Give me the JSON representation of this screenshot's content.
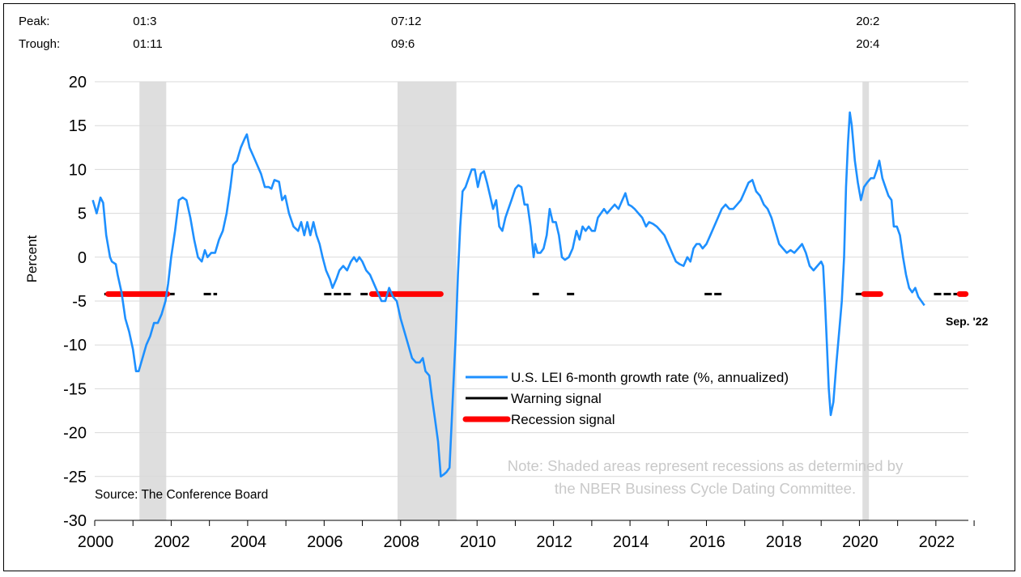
{
  "chart_data": {
    "type": "line",
    "ylabel": "Percent",
    "ylim": [
      -30,
      20
    ],
    "yticks": [
      20,
      15,
      10,
      5,
      0,
      -5,
      -10,
      -15,
      -20,
      -25,
      -30
    ],
    "xlim": [
      2000,
      2022.85
    ],
    "xticks": [
      2000,
      2002,
      2004,
      2006,
      2008,
      2010,
      2012,
      2014,
      2016,
      2018,
      2020,
      2022
    ],
    "grid": true,
    "peak_label": "Peak:",
    "trough_label": "Trough:",
    "recessions": [
      {
        "peak": "01:3",
        "trough": "01:11",
        "start": 2001.17,
        "end": 2001.87
      },
      {
        "peak": "07:12",
        "trough": "09:6",
        "start": 2007.92,
        "end": 2009.46
      },
      {
        "peak": "20:2",
        "trough": "20:4",
        "start": 2020.08,
        "end": 2020.25
      }
    ],
    "series": [
      {
        "name": "U.S. LEI 6-month growth rate (%, annualized)",
        "color": "#1e90ff",
        "points": [
          [
            1999.95,
            6.5
          ],
          [
            2000.05,
            5.0
          ],
          [
            2000.15,
            6.8
          ],
          [
            2000.22,
            6.2
          ],
          [
            2000.3,
            2.5
          ],
          [
            2000.4,
            0
          ],
          [
            2000.45,
            -0.5
          ],
          [
            2000.55,
            -0.8
          ],
          [
            2000.6,
            -2.0
          ],
          [
            2000.7,
            -4.0
          ],
          [
            2000.8,
            -7.0
          ],
          [
            2000.9,
            -8.5
          ],
          [
            2001.0,
            -10.5
          ],
          [
            2001.08,
            -13.0
          ],
          [
            2001.15,
            -13.0
          ],
          [
            2001.25,
            -11.5
          ],
          [
            2001.35,
            -10.0
          ],
          [
            2001.45,
            -9.0
          ],
          [
            2001.55,
            -7.5
          ],
          [
            2001.65,
            -7.5
          ],
          [
            2001.75,
            -6.5
          ],
          [
            2001.85,
            -5.0
          ],
          [
            2001.92,
            -3.0
          ],
          [
            2002.0,
            0
          ],
          [
            2002.1,
            3.0
          ],
          [
            2002.2,
            6.5
          ],
          [
            2002.3,
            6.8
          ],
          [
            2002.4,
            6.5
          ],
          [
            2002.5,
            4.5
          ],
          [
            2002.6,
            2.0
          ],
          [
            2002.7,
            0
          ],
          [
            2002.8,
            -0.5
          ],
          [
            2002.88,
            0.8
          ],
          [
            2002.95,
            0
          ],
          [
            2003.05,
            0.5
          ],
          [
            2003.15,
            0.5
          ],
          [
            2003.25,
            2.0
          ],
          [
            2003.35,
            3.0
          ],
          [
            2003.45,
            5.0
          ],
          [
            2003.55,
            8.0
          ],
          [
            2003.62,
            10.5
          ],
          [
            2003.72,
            11.0
          ],
          [
            2003.82,
            12.5
          ],
          [
            2003.92,
            13.5
          ],
          [
            2003.98,
            14.0
          ],
          [
            2004.05,
            12.5
          ],
          [
            2004.15,
            11.5
          ],
          [
            2004.25,
            10.5
          ],
          [
            2004.35,
            9.5
          ],
          [
            2004.45,
            8.0
          ],
          [
            2004.55,
            8.0
          ],
          [
            2004.62,
            7.8
          ],
          [
            2004.7,
            8.8
          ],
          [
            2004.82,
            8.6
          ],
          [
            2004.9,
            6.5
          ],
          [
            2004.98,
            7.0
          ],
          [
            2005.08,
            5.0
          ],
          [
            2005.2,
            3.5
          ],
          [
            2005.32,
            3.0
          ],
          [
            2005.4,
            4.0
          ],
          [
            2005.48,
            2.5
          ],
          [
            2005.56,
            4.0
          ],
          [
            2005.64,
            2.5
          ],
          [
            2005.72,
            4.0
          ],
          [
            2005.8,
            2.5
          ],
          [
            2005.88,
            1.5
          ],
          [
            2005.96,
            0
          ],
          [
            2006.05,
            -1.5
          ],
          [
            2006.15,
            -2.5
          ],
          [
            2006.22,
            -3.5
          ],
          [
            2006.32,
            -2.5
          ],
          [
            2006.4,
            -1.5
          ],
          [
            2006.5,
            -1.0
          ],
          [
            2006.6,
            -1.5
          ],
          [
            2006.7,
            -0.5
          ],
          [
            2006.78,
            0.0
          ],
          [
            2006.85,
            -0.5
          ],
          [
            2006.92,
            0.0
          ],
          [
            2007.0,
            -0.5
          ],
          [
            2007.1,
            -1.5
          ],
          [
            2007.2,
            -2.0
          ],
          [
            2007.3,
            -3.0
          ],
          [
            2007.4,
            -4.0
          ],
          [
            2007.5,
            -5.0
          ],
          [
            2007.6,
            -5.0
          ],
          [
            2007.7,
            -3.5
          ],
          [
            2007.8,
            -4.5
          ],
          [
            2007.9,
            -5.0
          ],
          [
            2008.0,
            -7.0
          ],
          [
            2008.1,
            -8.5
          ],
          [
            2008.2,
            -10.0
          ],
          [
            2008.3,
            -11.5
          ],
          [
            2008.4,
            -12.0
          ],
          [
            2008.5,
            -12.0
          ],
          [
            2008.58,
            -11.5
          ],
          [
            2008.65,
            -13.0
          ],
          [
            2008.75,
            -13.5
          ],
          [
            2008.82,
            -16.0
          ],
          [
            2008.9,
            -18.5
          ],
          [
            2008.98,
            -21.0
          ],
          [
            2009.05,
            -25.0
          ],
          [
            2009.12,
            -24.8
          ],
          [
            2009.2,
            -24.5
          ],
          [
            2009.28,
            -24.0
          ],
          [
            2009.36,
            -16.5
          ],
          [
            2009.44,
            -9.0
          ],
          [
            2009.5,
            -2.0
          ],
          [
            2009.56,
            3.5
          ],
          [
            2009.62,
            7.5
          ],
          [
            2009.7,
            8.0
          ],
          [
            2009.78,
            9.0
          ],
          [
            2009.86,
            10.0
          ],
          [
            2009.94,
            10.0
          ],
          [
            2010.02,
            8.0
          ],
          [
            2010.1,
            9.5
          ],
          [
            2010.18,
            9.8
          ],
          [
            2010.26,
            8.5
          ],
          [
            2010.34,
            7.0
          ],
          [
            2010.42,
            5.5
          ],
          [
            2010.5,
            6.5
          ],
          [
            2010.58,
            3.5
          ],
          [
            2010.66,
            3.0
          ],
          [
            2010.74,
            4.5
          ],
          [
            2010.82,
            5.5
          ],
          [
            2010.9,
            6.5
          ],
          [
            2011.0,
            7.8
          ],
          [
            2011.08,
            8.2
          ],
          [
            2011.16,
            8.0
          ],
          [
            2011.24,
            6.0
          ],
          [
            2011.32,
            6.0
          ],
          [
            2011.4,
            3.5
          ],
          [
            2011.48,
            0
          ],
          [
            2011.52,
            1.5
          ],
          [
            2011.58,
            0.5
          ],
          [
            2011.66,
            0.5
          ],
          [
            2011.74,
            1.0
          ],
          [
            2011.82,
            2.5
          ],
          [
            2011.9,
            5.5
          ],
          [
            2011.98,
            4.0
          ],
          [
            2012.06,
            4.0
          ],
          [
            2012.14,
            2.5
          ],
          [
            2012.22,
            0
          ],
          [
            2012.3,
            -0.3
          ],
          [
            2012.4,
            0
          ],
          [
            2012.5,
            1.0
          ],
          [
            2012.6,
            3.0
          ],
          [
            2012.68,
            2.0
          ],
          [
            2012.76,
            3.5
          ],
          [
            2012.84,
            3.0
          ],
          [
            2012.92,
            3.5
          ],
          [
            2013.0,
            3.0
          ],
          [
            2013.08,
            3.0
          ],
          [
            2013.16,
            4.5
          ],
          [
            2013.24,
            5.0
          ],
          [
            2013.32,
            5.5
          ],
          [
            2013.4,
            5.0
          ],
          [
            2013.5,
            5.5
          ],
          [
            2013.6,
            6.0
          ],
          [
            2013.7,
            5.5
          ],
          [
            2013.8,
            6.5
          ],
          [
            2013.88,
            7.3
          ],
          [
            2013.96,
            6.0
          ],
          [
            2014.04,
            5.8
          ],
          [
            2014.12,
            5.5
          ],
          [
            2014.22,
            5.0
          ],
          [
            2014.32,
            4.5
          ],
          [
            2014.42,
            3.5
          ],
          [
            2014.5,
            4.0
          ],
          [
            2014.6,
            3.8
          ],
          [
            2014.7,
            3.5
          ],
          [
            2014.8,
            3.0
          ],
          [
            2014.9,
            2.5
          ],
          [
            2015.0,
            1.5
          ],
          [
            2015.1,
            0.5
          ],
          [
            2015.2,
            -0.5
          ],
          [
            2015.3,
            -0.8
          ],
          [
            2015.4,
            -1.0
          ],
          [
            2015.5,
            0
          ],
          [
            2015.58,
            -0.5
          ],
          [
            2015.66,
            1.0
          ],
          [
            2015.74,
            1.5
          ],
          [
            2015.82,
            1.5
          ],
          [
            2015.9,
            1.0
          ],
          [
            2016.0,
            1.5
          ],
          [
            2016.1,
            2.5
          ],
          [
            2016.2,
            3.5
          ],
          [
            2016.3,
            4.5
          ],
          [
            2016.4,
            5.5
          ],
          [
            2016.5,
            6.0
          ],
          [
            2016.6,
            5.5
          ],
          [
            2016.7,
            5.5
          ],
          [
            2016.8,
            6.0
          ],
          [
            2016.9,
            6.5
          ],
          [
            2017.0,
            7.5
          ],
          [
            2017.1,
            8.5
          ],
          [
            2017.2,
            8.8
          ],
          [
            2017.3,
            7.5
          ],
          [
            2017.4,
            7.0
          ],
          [
            2017.5,
            6.0
          ],
          [
            2017.6,
            5.5
          ],
          [
            2017.7,
            4.5
          ],
          [
            2017.8,
            3.0
          ],
          [
            2017.9,
            1.5
          ],
          [
            2018.0,
            1.0
          ],
          [
            2018.1,
            0.5
          ],
          [
            2018.2,
            0.8
          ],
          [
            2018.3,
            0.5
          ],
          [
            2018.4,
            1.0
          ],
          [
            2018.5,
            1.5
          ],
          [
            2018.6,
            0.5
          ],
          [
            2018.7,
            -1.0
          ],
          [
            2018.8,
            -1.5
          ],
          [
            2018.9,
            -1.0
          ],
          [
            2019.0,
            -0.5
          ],
          [
            2019.05,
            -1.0
          ],
          [
            2019.1,
            -5.0
          ],
          [
            2019.15,
            -10.0
          ],
          [
            2019.2,
            -15.0
          ],
          [
            2019.25,
            -18.0
          ],
          [
            2019.32,
            -16.5
          ],
          [
            2019.4,
            -12.0
          ],
          [
            2019.48,
            -8.0
          ],
          [
            2019.54,
            -5.0
          ],
          [
            2019.6,
            0
          ],
          [
            2019.65,
            8.0
          ],
          [
            2019.7,
            13.0
          ],
          [
            2019.75,
            16.5
          ],
          [
            2019.8,
            15.0
          ],
          [
            2019.88,
            11.0
          ],
          [
            2019.96,
            8.5
          ],
          [
            2020.04,
            6.5
          ],
          [
            2020.12,
            8.0
          ],
          [
            2020.2,
            8.5
          ],
          [
            2020.3,
            9.0
          ],
          [
            2020.38,
            9.0
          ],
          [
            2020.46,
            10.0
          ],
          [
            2020.52,
            11.0
          ],
          [
            2020.6,
            9.0
          ],
          [
            2020.68,
            8.0
          ],
          [
            2020.76,
            7.0
          ],
          [
            2020.84,
            6.5
          ],
          [
            2020.9,
            3.5
          ],
          [
            2020.98,
            3.5
          ],
          [
            2021.06,
            2.5
          ],
          [
            2021.14,
            0
          ],
          [
            2021.22,
            -2.0
          ],
          [
            2021.3,
            -3.5
          ],
          [
            2021.38,
            -4.0
          ],
          [
            2021.46,
            -3.5
          ],
          [
            2021.54,
            -4.5
          ],
          [
            2021.62,
            -5.0
          ],
          [
            2021.7,
            -5.5
          ]
        ]
      }
    ],
    "warning_segments": [
      [
        2000.25,
        2000.55
      ],
      [
        2001.9,
        2002.1
      ],
      [
        2002.85,
        2003.2
      ],
      [
        2006.0,
        2006.75
      ],
      [
        2006.95,
        2007.25
      ],
      [
        2011.45,
        2011.62
      ],
      [
        2012.35,
        2012.6
      ],
      [
        2015.95,
        2016.45
      ],
      [
        2019.9,
        2020.12
      ],
      [
        2021.95,
        2022.62
      ]
    ],
    "recession_segments": [
      [
        2000.35,
        2001.9
      ],
      [
        2007.25,
        2009.05
      ],
      [
        2020.12,
        2020.55
      ],
      [
        2022.62,
        2022.78
      ]
    ],
    "legend": {
      "line_label": "U.S. LEI 6-month growth rate (%, annualized)",
      "warning_label": "Warning signal",
      "recession_label": "Recession signal"
    },
    "end_label": "Sep. '22",
    "note_line1": "Note: Shaded areas represent recessions as determined by",
    "note_line2": "the NBER Business Cycle Dating Committee.",
    "source": "Source: The Conference Board"
  },
  "colors": {
    "line": "#1e90ff",
    "warning": "#000000",
    "recession": "#ff0000",
    "shade": "#dedede",
    "grid": "#d9d9d9"
  }
}
